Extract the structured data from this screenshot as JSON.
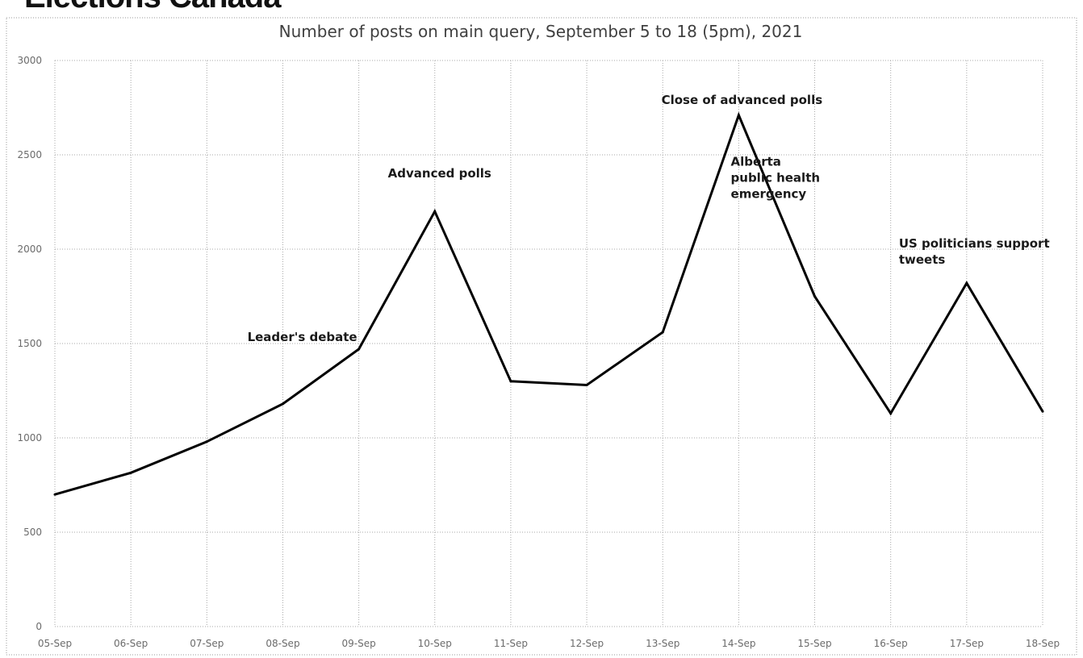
{
  "header": {
    "title": "Elections Canada"
  },
  "chart_data": {
    "type": "line",
    "title": "Number of posts on main query, September 5 to 18 (5pm), 2021",
    "xlabel": "",
    "ylabel": "",
    "categories": [
      "05-Sep",
      "06-Sep",
      "07-Sep",
      "08-Sep",
      "09-Sep",
      "10-Sep",
      "11-Sep",
      "12-Sep",
      "13-Sep",
      "14-Sep",
      "15-Sep",
      "16-Sep",
      "17-Sep",
      "18-Sep"
    ],
    "series": [
      {
        "values": [
          700,
          815,
          980,
          1180,
          1470,
          2200,
          1300,
          1280,
          1560,
          2710,
          1750,
          1130,
          1820,
          1140
        ]
      }
    ],
    "ylim": [
      0,
      3000
    ],
    "yticks": [
      "0",
      "500",
      "1000",
      "1500",
      "2000",
      "2500",
      "3000"
    ],
    "grid": true,
    "line_color": "#000000",
    "annotations": [
      {
        "lines": [
          "Leader's debate"
        ],
        "category": "09-Sep"
      },
      {
        "lines": [
          "Advanced polls"
        ],
        "category": "10-Sep"
      },
      {
        "lines": [
          "Close of advanced polls"
        ],
        "category": "14-Sep"
      },
      {
        "lines": [
          "Alberta",
          "public health",
          "emergency"
        ],
        "category": "15-Sep"
      },
      {
        "lines": [
          "US politicians support",
          "tweets"
        ],
        "category": "17-Sep"
      }
    ]
  }
}
